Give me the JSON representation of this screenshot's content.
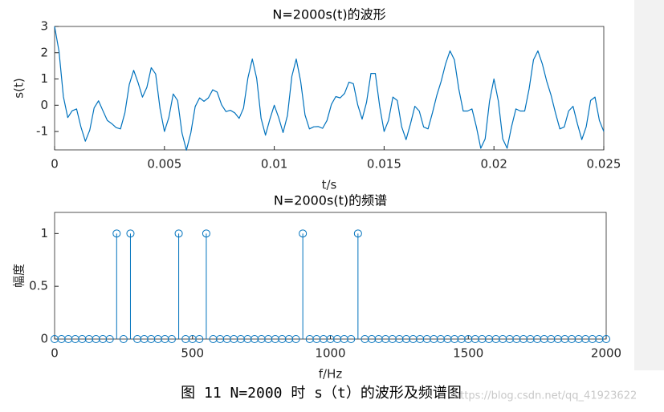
{
  "chart_data": [
    {
      "type": "line",
      "title": "N=2000s(t)的波形",
      "x_label": "t/s",
      "y_label": "s(t)",
      "x": [
        0,
        0.0002,
        0.0004,
        0.0006,
        0.0008,
        0.001,
        0.0012,
        0.0014,
        0.0016,
        0.0018,
        0.002,
        0.0022,
        0.0024,
        0.0026,
        0.0028,
        0.003,
        0.0032,
        0.0034,
        0.0036,
        0.0038,
        0.004,
        0.0042,
        0.0044,
        0.0046,
        0.0048,
        0.005,
        0.0052,
        0.0054,
        0.0056,
        0.0058,
        0.006,
        0.0062,
        0.0064,
        0.0066,
        0.0068,
        0.007,
        0.0072,
        0.0074,
        0.0076,
        0.0078,
        0.008,
        0.0082,
        0.0084,
        0.0086,
        0.0088,
        0.009,
        0.0092,
        0.0094,
        0.0096,
        0.0098,
        0.01,
        0.0102,
        0.0104,
        0.0106,
        0.0108,
        0.011,
        0.0112,
        0.0114,
        0.0116,
        0.0118,
        0.012,
        0.0122,
        0.0124,
        0.0126,
        0.0128,
        0.013,
        0.0132,
        0.0134,
        0.0136,
        0.0138,
        0.014,
        0.0142,
        0.0144,
        0.0146,
        0.0148,
        0.015,
        0.0152,
        0.0154,
        0.0156,
        0.0158,
        0.016,
        0.0162,
        0.0164,
        0.0166,
        0.0168,
        0.017,
        0.0172,
        0.0174,
        0.0176,
        0.0178,
        0.018,
        0.0182,
        0.0184,
        0.0186,
        0.0188,
        0.019,
        0.0192,
        0.0194,
        0.0196,
        0.0198,
        0.02,
        0.0202,
        0.0204,
        0.0206,
        0.0208,
        0.021,
        0.0212,
        0.0214,
        0.0216,
        0.0218,
        0.022,
        0.0222,
        0.0224,
        0.0226,
        0.0228,
        0.023,
        0.0232,
        0.0234,
        0.0236,
        0.0238,
        0.024,
        0.0242,
        0.0244,
        0.0246,
        0.0248,
        0.025
      ],
      "series": [
        {
          "color": "#0072bd",
          "values": [
            3.0,
            2.06,
            0.33,
            -0.47,
            -0.21,
            -0.14,
            -0.83,
            -1.37,
            -0.95,
            -0.1,
            0.17,
            -0.21,
            -0.58,
            -0.7,
            -0.85,
            -0.9,
            -0.29,
            0.79,
            1.33,
            0.86,
            0.31,
            0.68,
            1.43,
            1.19,
            -0.13,
            -1.0,
            -0.47,
            0.43,
            0.18,
            -1.06,
            -1.71,
            -1.06,
            -0.05,
            0.28,
            0.15,
            0.28,
            0.59,
            0.5,
            0.02,
            -0.24,
            -0.19,
            -0.29,
            -0.5,
            -0.11,
            1.04,
            1.76,
            1.02,
            -0.5,
            -1.14,
            -0.53,
            0.0,
            -0.47,
            -1.04,
            -0.39,
            1.1,
            1.76,
            0.92,
            -0.37,
            -0.9,
            -0.82,
            -0.81,
            -0.88,
            -0.58,
            0.03,
            0.33,
            0.28,
            0.45,
            0.88,
            0.82,
            0.01,
            -0.53,
            0.11,
            1.21,
            1.21,
            -0.05,
            -1.0,
            -0.58,
            0.31,
            0.18,
            -0.82,
            -1.31,
            -0.71,
            -0.04,
            -0.22,
            -0.83,
            -0.9,
            -0.29,
            0.38,
            0.92,
            1.58,
            2.07,
            1.73,
            0.62,
            -0.22,
            -0.22,
            -0.14,
            -0.82,
            -1.64,
            -1.28,
            0.16,
            1.0,
            0.16,
            -1.28,
            -1.64,
            -0.82,
            -0.14,
            -0.22,
            -0.22,
            0.62,
            1.73,
            2.07,
            1.58,
            0.92,
            0.38,
            -0.29,
            -0.9,
            -0.83,
            -0.22,
            -0.04,
            -0.71,
            -1.31,
            -0.82,
            0.18,
            0.31,
            -0.58,
            -1.0
          ]
        }
      ],
      "xlim": [
        0,
        0.025
      ],
      "xticks": [
        0,
        0.005,
        0.01,
        0.015,
        0.02,
        0.025
      ],
      "ylim": [
        -1.7,
        3
      ],
      "yticks": [
        -1,
        0,
        1,
        2,
        3
      ]
    },
    {
      "type": "stem",
      "title": "N=2000s(t)的频谱",
      "x_label": "f/Hz",
      "y_label": "幅度",
      "x": [
        0,
        25,
        50,
        75,
        100,
        125,
        150,
        175,
        200,
        225,
        250,
        275,
        300,
        325,
        350,
        375,
        400,
        425,
        450,
        475,
        500,
        525,
        550,
        575,
        600,
        625,
        650,
        675,
        700,
        725,
        750,
        775,
        800,
        825,
        850,
        875,
        900,
        925,
        950,
        975,
        1000,
        1025,
        1050,
        1075,
        1100,
        1125,
        1150,
        1175,
        1200,
        1225,
        1250,
        1275,
        1300,
        1325,
        1350,
        1375,
        1400,
        1425,
        1450,
        1475,
        1500,
        1525,
        1550,
        1575,
        1600,
        1625,
        1650,
        1675,
        1700,
        1725,
        1750,
        1775,
        1800,
        1825,
        1850,
        1875,
        1900,
        1925,
        1950,
        1975,
        2000
      ],
      "series": [
        {
          "color": "#0072bd",
          "values": [
            0,
            0,
            0,
            0,
            0,
            0,
            0,
            0,
            0,
            1,
            0,
            1,
            0,
            0,
            0,
            0,
            0,
            0,
            1,
            0,
            0,
            0,
            1,
            0,
            0,
            0,
            0,
            0,
            0,
            0,
            0,
            0,
            0,
            0,
            0,
            0,
            1,
            0,
            0,
            0,
            0,
            0,
            0,
            0,
            1,
            0,
            0,
            0,
            0,
            0,
            0,
            0,
            0,
            0,
            0,
            0,
            0,
            0,
            0,
            0,
            0,
            0,
            0,
            0,
            0,
            0,
            0,
            0,
            0,
            0,
            0,
            0,
            0,
            0,
            0,
            0,
            0,
            0,
            0,
            0,
            0
          ]
        }
      ],
      "xlim": [
        0,
        2000
      ],
      "xticks": [
        0,
        500,
        1000,
        1500,
        2000
      ],
      "ylim": [
        0,
        1.2
      ],
      "yticks": [
        0,
        0.5,
        1
      ]
    }
  ],
  "caption": "图 11 N=2000 时 s（t）的波形及频谱图",
  "watermark": "https://blog.csdn.net/qq_41923622"
}
